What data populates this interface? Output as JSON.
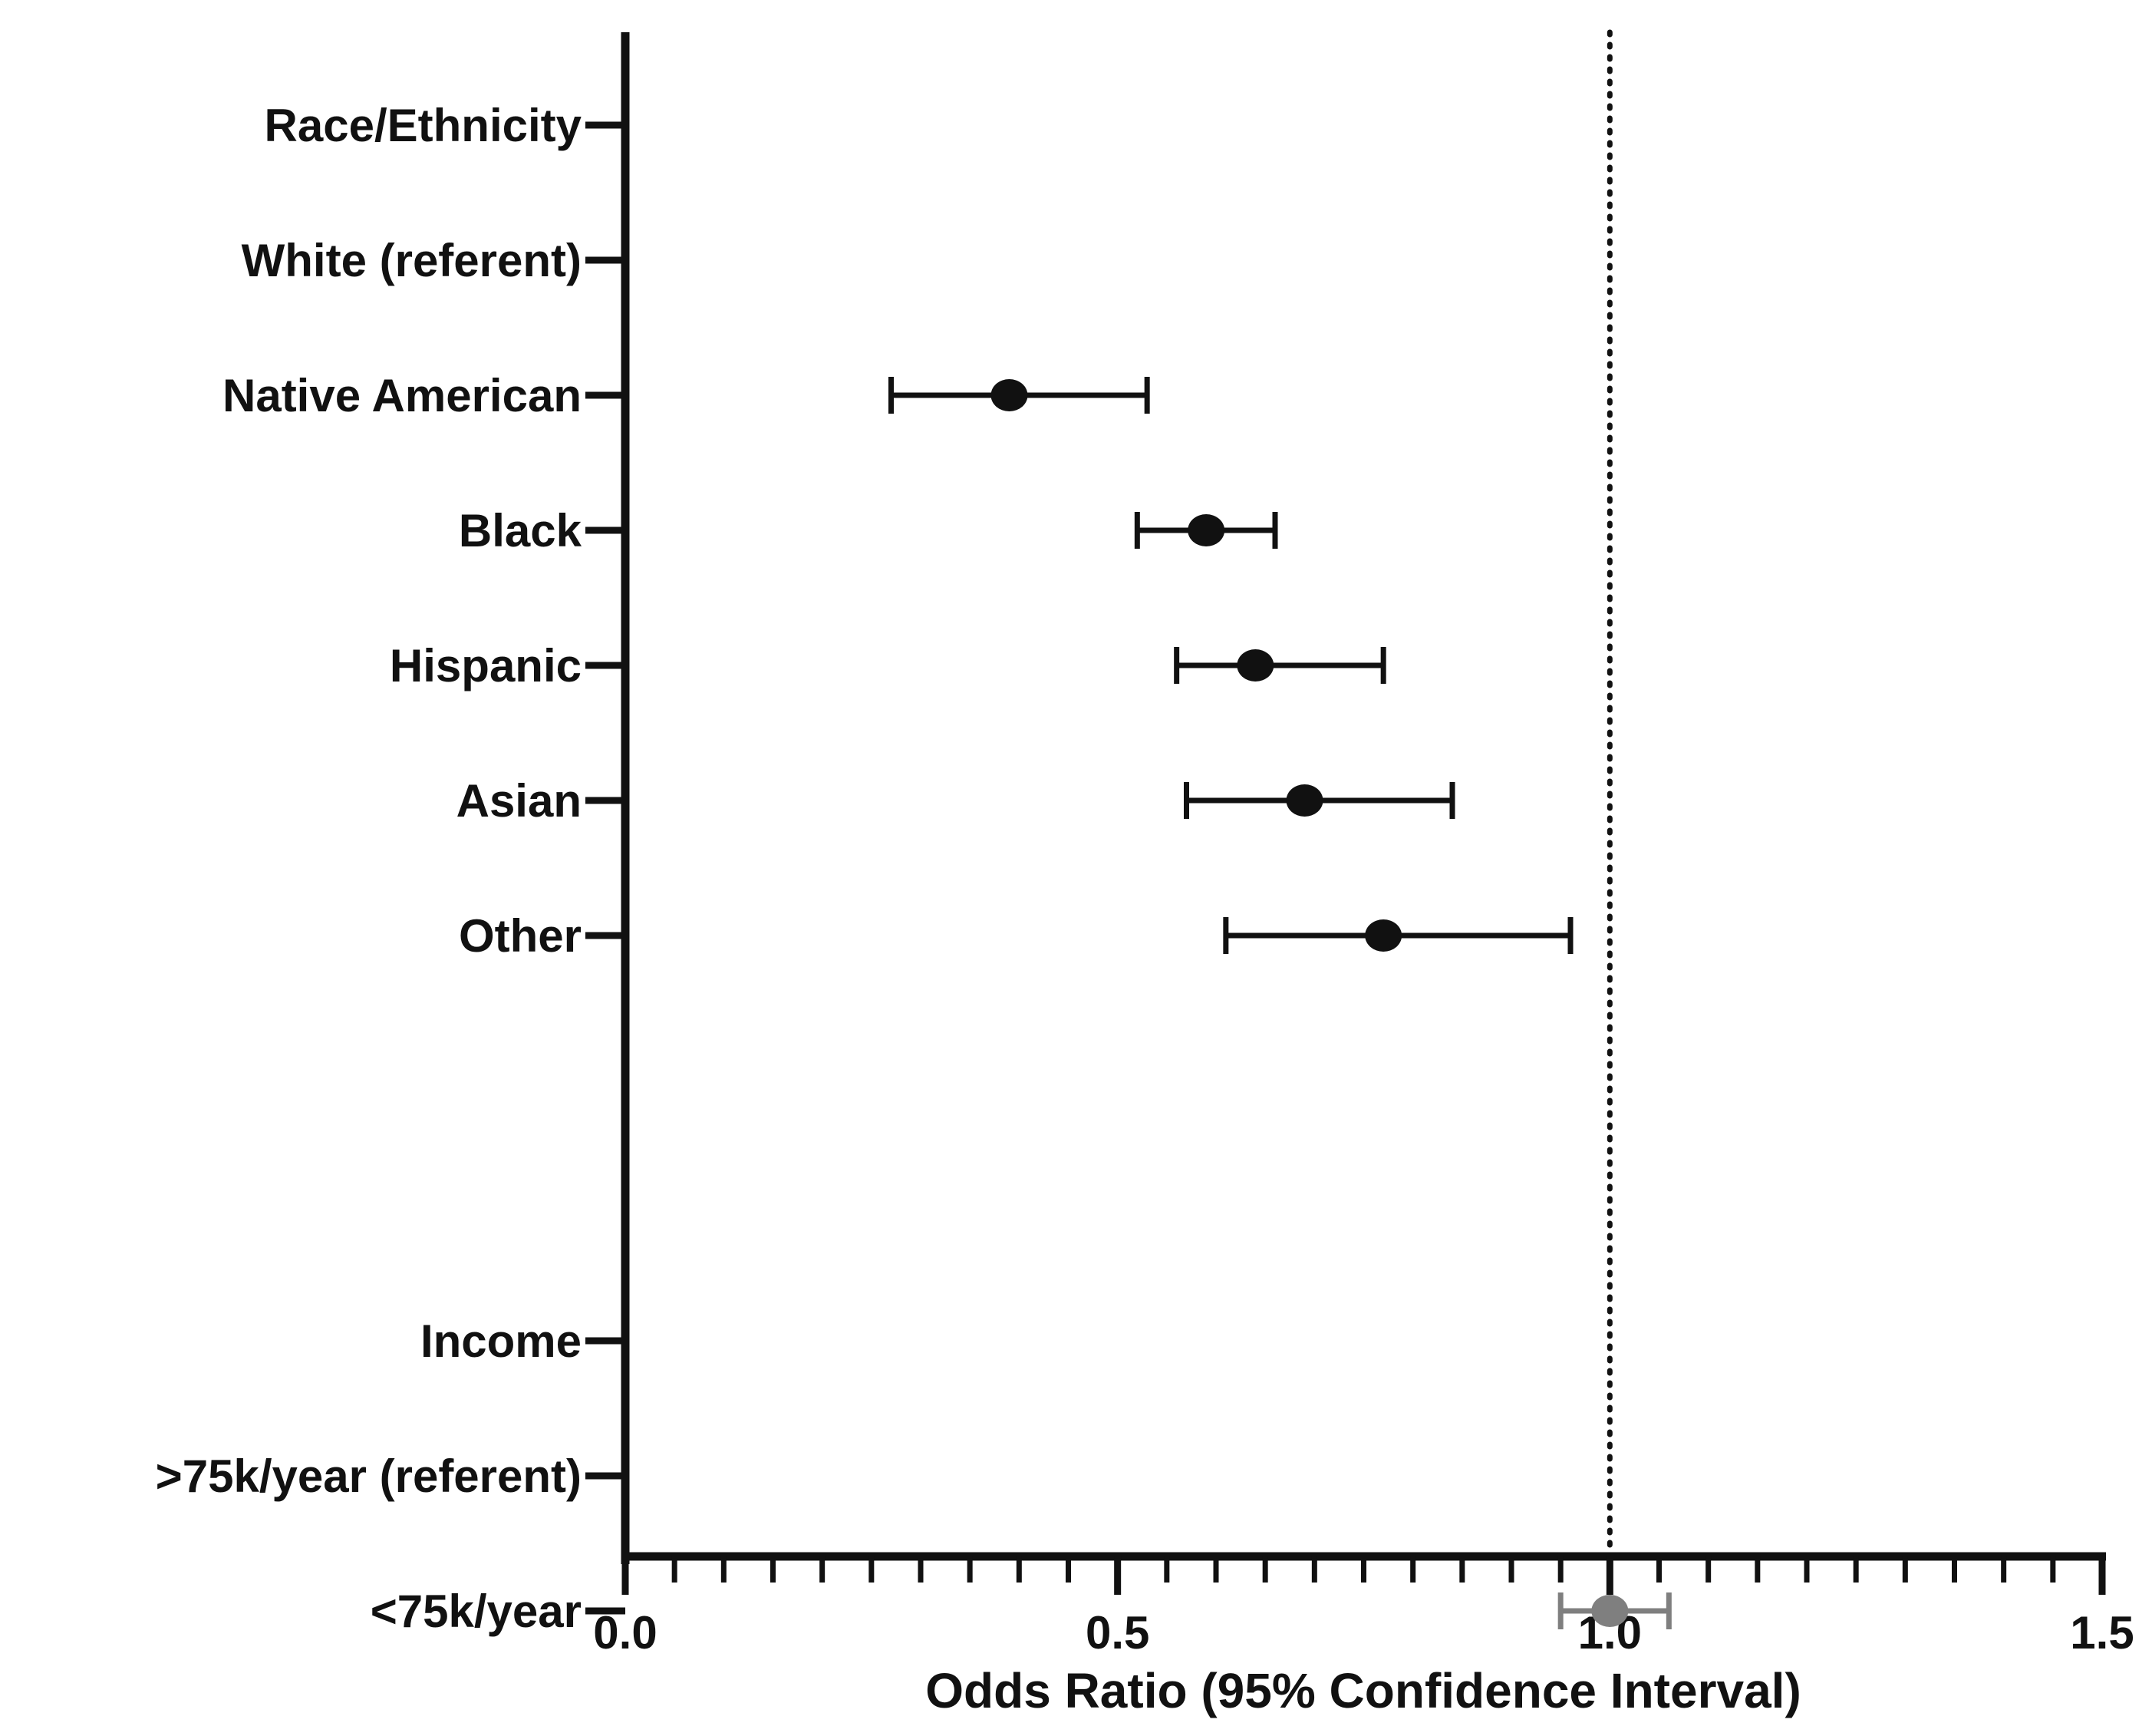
{
  "chart_data": {
    "type": "forest",
    "title": "",
    "xlabel": "Odds Ratio (95% Confidence Interval)",
    "ylabel": "",
    "xlim": [
      0,
      1.5
    ],
    "x_ticks": [
      0.0,
      0.5,
      1.0,
      1.5
    ],
    "x_tick_labels": [
      "0.0",
      "0.5",
      "1.0",
      "1.5"
    ],
    "minor_tick_step": 0.05,
    "reference_line": 1.0,
    "grid": false,
    "colors": {
      "axis": "#111111",
      "point": "#111111",
      "point_highlight": "#7f7f7f",
      "reference_line": "#111111"
    },
    "rows": [
      {
        "label": "Race/Ethnicity",
        "or": null,
        "lower": null,
        "upper": null,
        "color": "#111111"
      },
      {
        "label": "White (referent)",
        "or": null,
        "lower": null,
        "upper": null,
        "color": "#111111"
      },
      {
        "label": "Native American",
        "or": 0.39,
        "lower": 0.27,
        "upper": 0.53,
        "color": "#111111"
      },
      {
        "label": "Black",
        "or": 0.59,
        "lower": 0.52,
        "upper": 0.66,
        "color": "#111111"
      },
      {
        "label": "Hispanic",
        "or": 0.64,
        "lower": 0.56,
        "upper": 0.77,
        "color": "#111111"
      },
      {
        "label": "Asian",
        "or": 0.69,
        "lower": 0.57,
        "upper": 0.84,
        "color": "#111111"
      },
      {
        "label": "Other",
        "or": 0.77,
        "lower": 0.61,
        "upper": 0.96,
        "color": "#111111"
      },
      {
        "label": "",
        "or": null,
        "lower": null,
        "upper": null,
        "color": "#111111"
      },
      {
        "label": "",
        "or": null,
        "lower": null,
        "upper": null,
        "color": "#111111"
      },
      {
        "label": "Income",
        "or": null,
        "lower": null,
        "upper": null,
        "color": "#111111"
      },
      {
        "label": ">75k/year (referent)",
        "or": null,
        "lower": null,
        "upper": null,
        "color": "#111111"
      },
      {
        "label": "<75k/year",
        "or": 1.0,
        "lower": 0.95,
        "upper": 1.06,
        "color": "#7f7f7f"
      }
    ]
  }
}
